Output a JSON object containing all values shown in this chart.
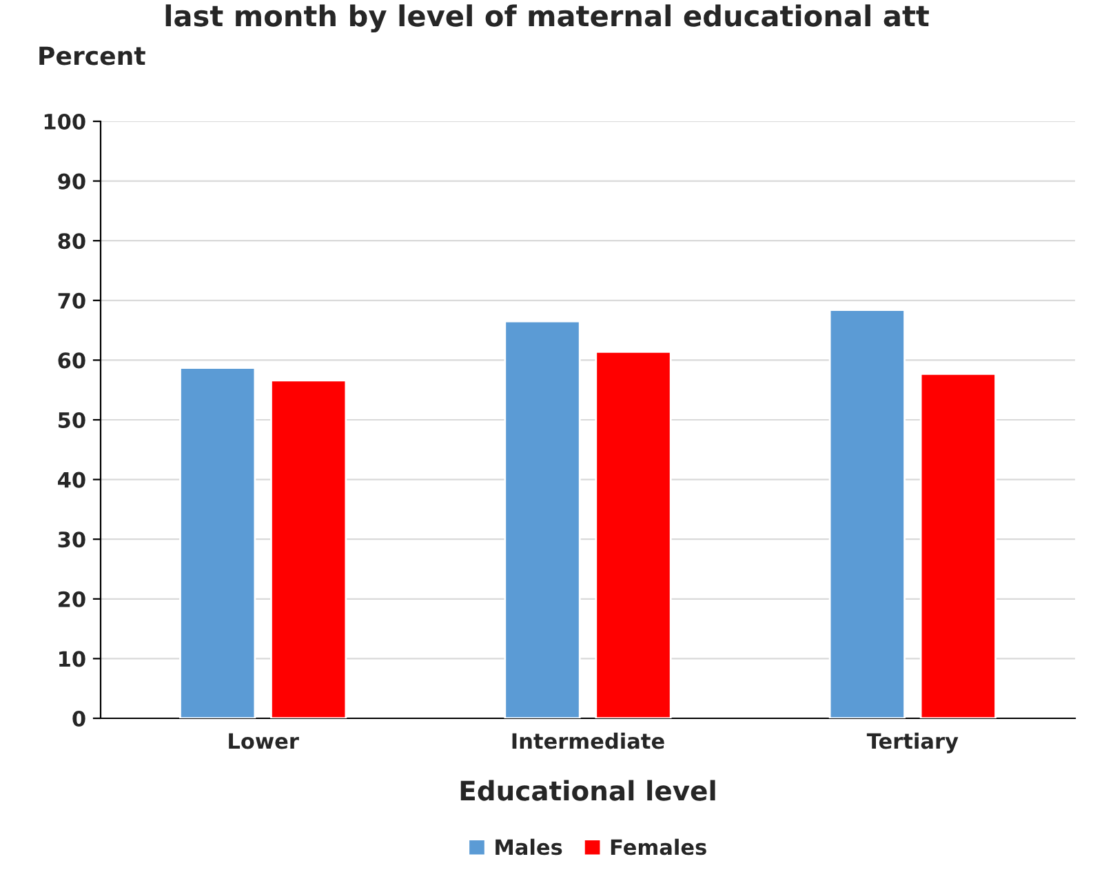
{
  "chart_data": {
    "type": "bar",
    "title": "last month by level of maternal educational att",
    "ylabel": "Percent",
    "xlabel": "Educational level",
    "categories": [
      "Lower",
      "Intermediate",
      "Tertiary"
    ],
    "series": [
      {
        "name": "Males",
        "color": "#5b9bd5",
        "values": [
          58.7,
          66.5,
          68.4
        ]
      },
      {
        "name": "Females",
        "color": "#ff0000",
        "values": [
          56.6,
          61.4,
          57.7
        ]
      }
    ],
    "ylim": [
      0,
      100
    ],
    "yticks": [
      0,
      10,
      20,
      30,
      40,
      50,
      60,
      70,
      80,
      90,
      100
    ],
    "grid": "y",
    "legend": "bottom"
  }
}
